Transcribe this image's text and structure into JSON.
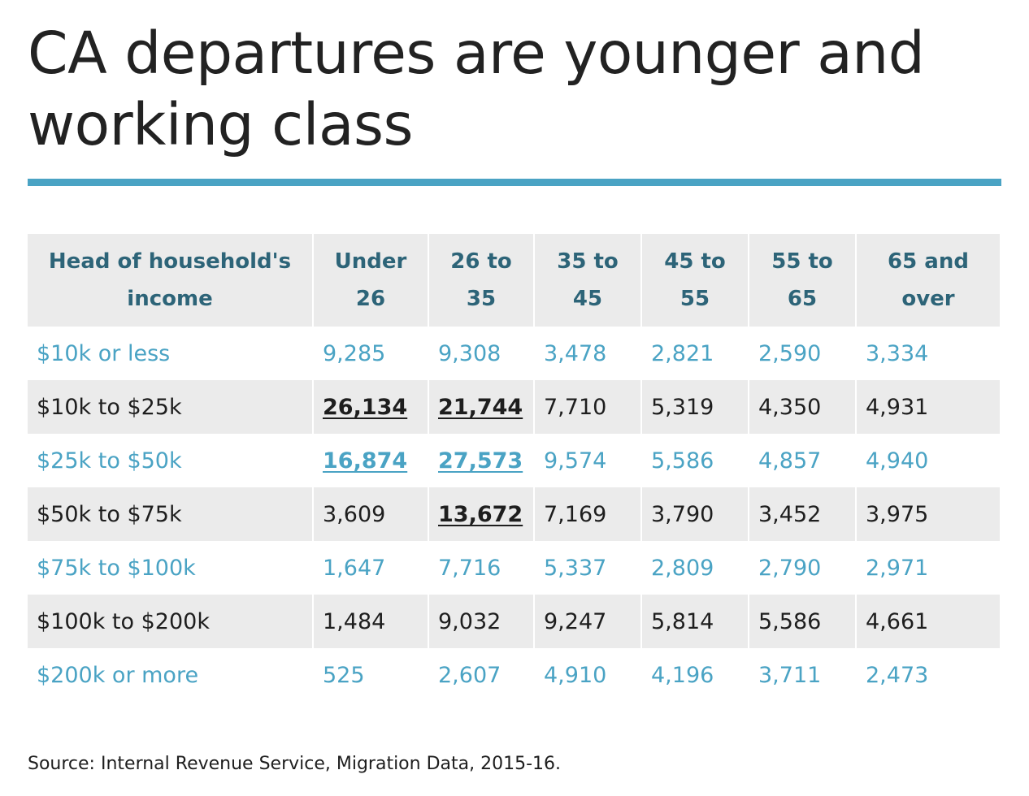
{
  "title": "CA departures are younger and working class",
  "source_label": "Source:",
  "source_text": "Internal Revenue Service, Migration Data, 2015-16.",
  "colors": {
    "accent": "#4aa3c4",
    "header_text": "#2d6478",
    "stripe": "#ebebeb",
    "dark_text": "#1e1e1e"
  },
  "chart_data": {
    "type": "table",
    "title": "CA departures are younger and working class",
    "columns": [
      "Head of household's income",
      "Under 26",
      "26 to 35",
      "35 to 45",
      "45 to 55",
      "55 to 65",
      "65 and over"
    ],
    "rows": [
      {
        "label": "$10k or less",
        "values": [
          "9,285",
          "9,308",
          "3,478",
          "2,821",
          "2,590",
          "3,334"
        ],
        "highlight": []
      },
      {
        "label": "$10k to $25k",
        "values": [
          "26,134",
          "21,744",
          "7,710",
          "5,319",
          "4,350",
          "4,931"
        ],
        "highlight": [
          0,
          1
        ]
      },
      {
        "label": "$25k to $50k",
        "values": [
          "16,874",
          "27,573",
          "9,574",
          "5,586",
          "4,857",
          "4,940"
        ],
        "highlight": [
          0,
          1
        ]
      },
      {
        "label": "$50k to $75k",
        "values": [
          "3,609",
          "13,672",
          "7,169",
          "3,790",
          "3,452",
          "3,975"
        ],
        "highlight": [
          1
        ]
      },
      {
        "label": "$75k to $100k",
        "values": [
          "1,647",
          "7,716",
          "5,337",
          "2,809",
          "2,790",
          "2,971"
        ],
        "highlight": []
      },
      {
        "label": "$100k to $200k",
        "values": [
          "1,484",
          "9,032",
          "9,247",
          "5,814",
          "5,586",
          "4,661"
        ],
        "highlight": []
      },
      {
        "label": "$200k or more",
        "values": [
          "525",
          "2,607",
          "4,910",
          "4,196",
          "3,711",
          "2,473"
        ],
        "highlight": []
      }
    ],
    "source": "Source: Internal Revenue Service, Migration Data, 2015-16."
  }
}
